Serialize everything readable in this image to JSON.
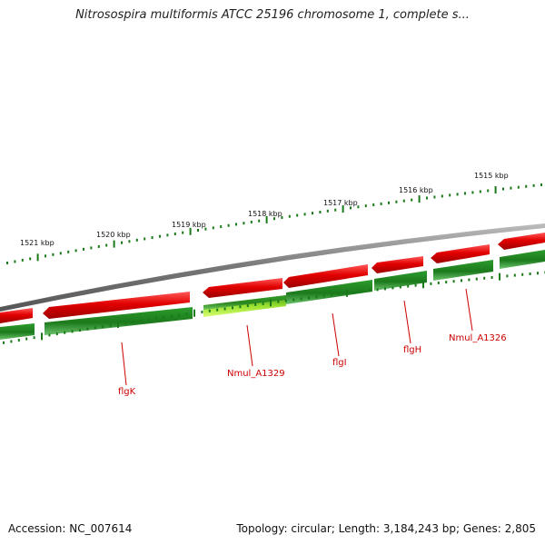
{
  "title": "Nitrosospira multiformis ATCC 25196 chromosome 1, complete s...",
  "accession": "Accession: NC_007614",
  "topology": "Topology: circular; Length: 3,184,243 bp; Genes: 2,805",
  "colors": {
    "backbone": "#888888",
    "forward_gene": "#e20000",
    "reverse_gene": "#1f8a1f",
    "highlight_gene": "#a8ee2a",
    "label": "#cc0000",
    "tick": "#1a7a1a"
  },
  "kbp_labels": [
    "1521 kbp",
    "1520 kbp",
    "1519 kbp",
    "1518 kbp",
    "1517 kbp",
    "1516 kbp",
    "1515 kbp"
  ],
  "gene_labels": [
    "flgK",
    "Nmul_A1329",
    "flgI",
    "flgH",
    "Nmul_A1326"
  ],
  "forward_strand_genes": 6,
  "reverse_strand_genes": 7
}
